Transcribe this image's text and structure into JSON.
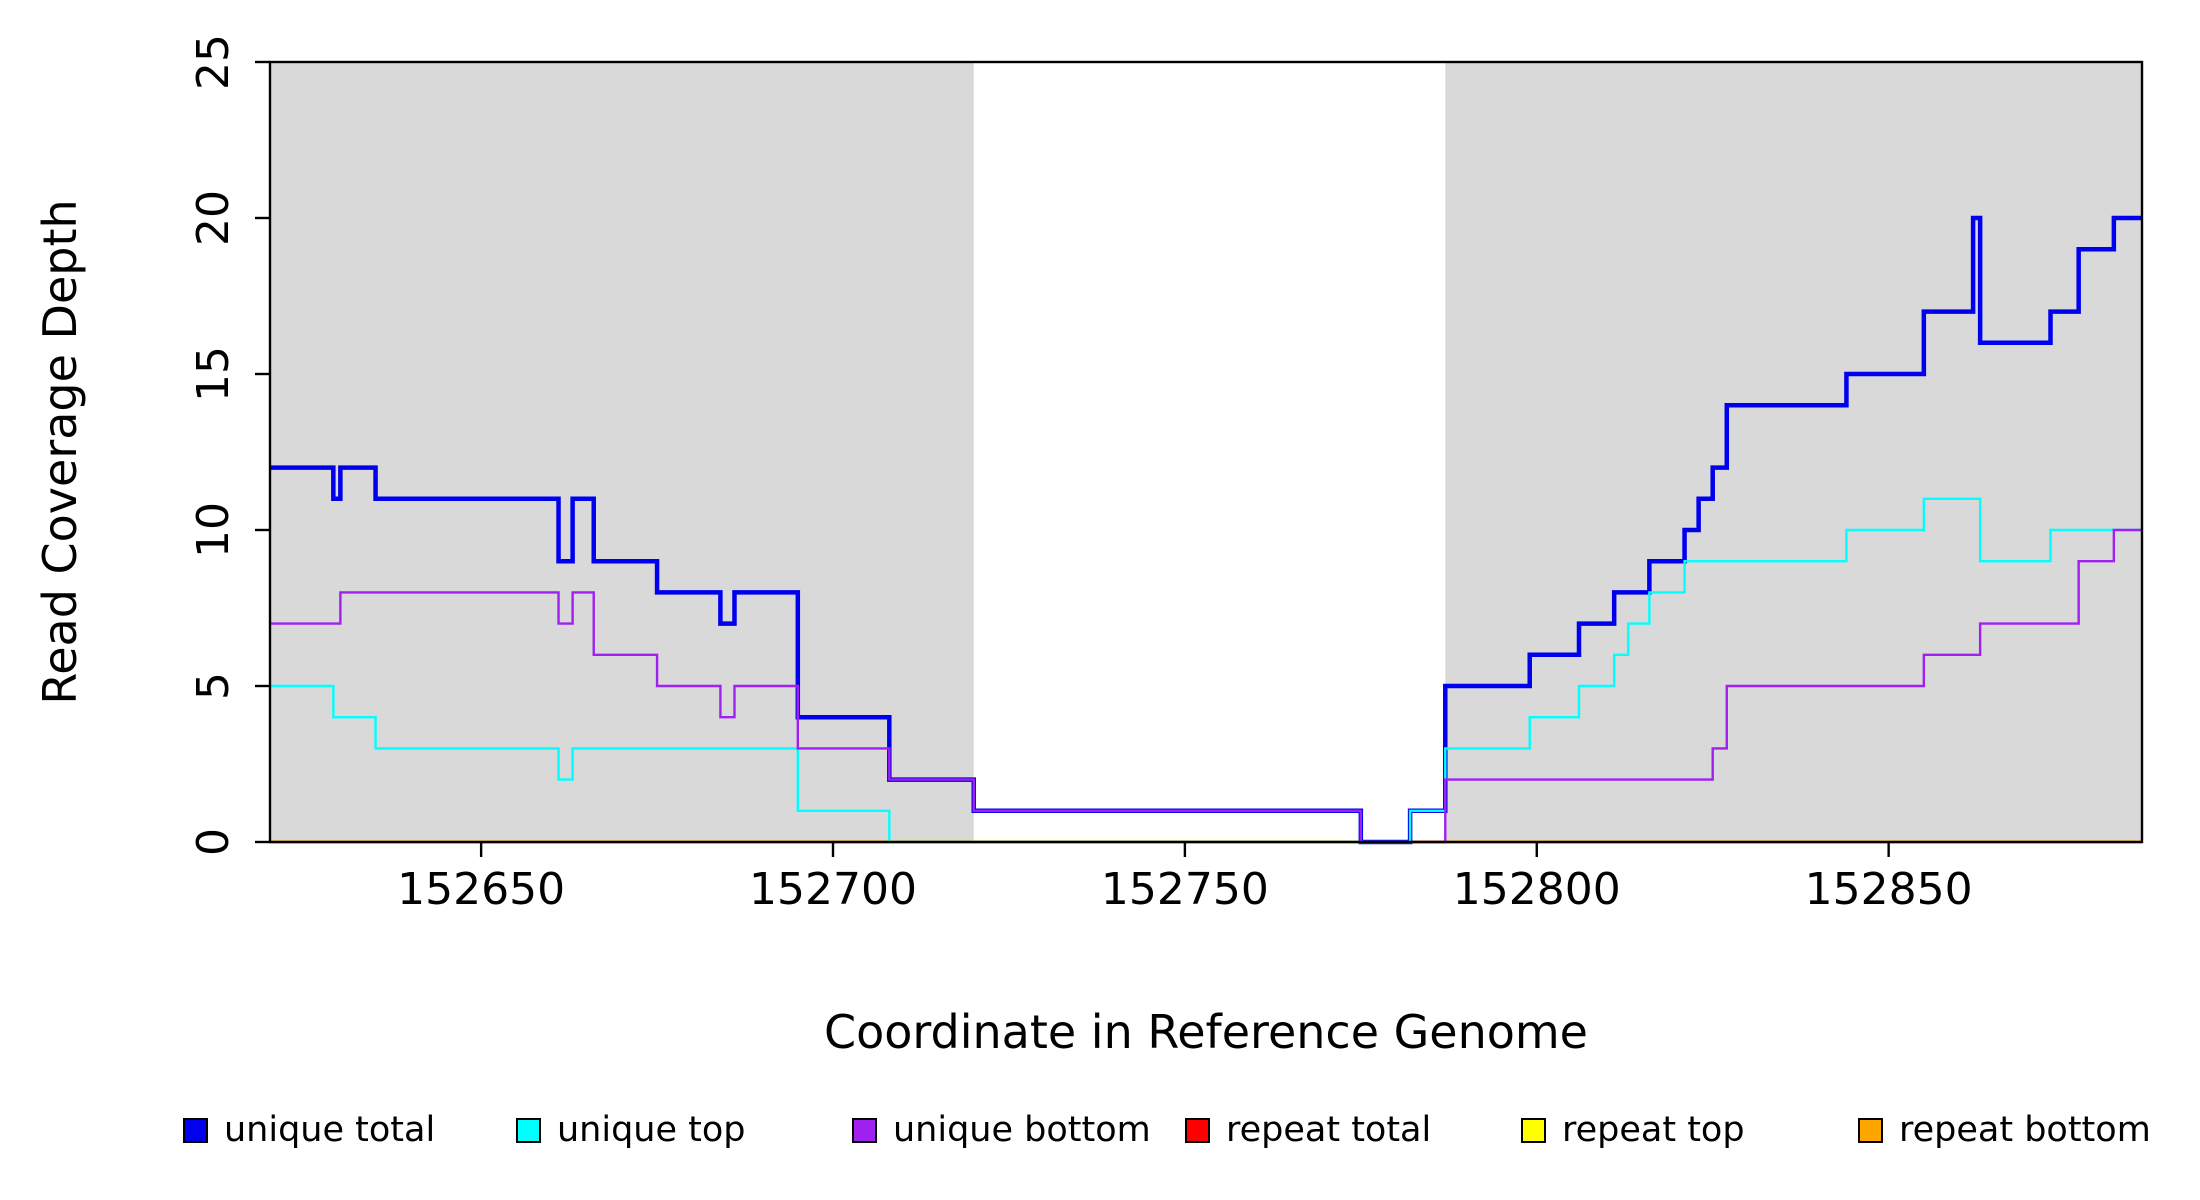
{
  "chart_data": {
    "type": "line",
    "subtype": "step-coverage",
    "title": "",
    "xlabel": "Coordinate in Reference Genome",
    "ylabel": "Read Coverage Depth",
    "xlim": [
      152620,
      152886
    ],
    "ylim": [
      0,
      25
    ],
    "x_ticks": [
      152650,
      152700,
      152750,
      152800,
      152850
    ],
    "y_ticks": [
      0,
      5,
      10,
      15,
      20,
      25
    ],
    "grid": false,
    "background_color": "#ffffff",
    "shade_color": "#D9D9D9",
    "shaded_regions": [
      [
        152620,
        152720
      ],
      [
        152787,
        152886
      ]
    ],
    "series": [
      {
        "name": "repeat total",
        "color": "#FF0000",
        "lwd": 3,
        "steps": [
          [
            152620,
            0
          ]
        ]
      },
      {
        "name": "repeat top",
        "color": "#FFFF00",
        "lwd": 3,
        "steps": [
          [
            152620,
            0
          ]
        ]
      },
      {
        "name": "repeat bottom",
        "color": "#FFA500",
        "lwd": 3.2,
        "steps": [
          [
            152620,
            0
          ]
        ]
      },
      {
        "name": "unique total",
        "color": "#0000EE",
        "lwd": 4.5,
        "steps": [
          [
            152620,
            12
          ],
          [
            152629,
            11
          ],
          [
            152630,
            12
          ],
          [
            152635,
            11
          ],
          [
            152661,
            9
          ],
          [
            152663,
            11
          ],
          [
            152666,
            9
          ],
          [
            152675,
            8
          ],
          [
            152684,
            7
          ],
          [
            152686,
            8
          ],
          [
            152695,
            4
          ],
          [
            152708,
            2
          ],
          [
            152720,
            1
          ],
          [
            152775,
            0
          ],
          [
            152782,
            1
          ],
          [
            152787,
            5
          ],
          [
            152799,
            6
          ],
          [
            152806,
            7
          ],
          [
            152811,
            8
          ],
          [
            152816,
            9
          ],
          [
            152821,
            10
          ],
          [
            152823,
            11
          ],
          [
            152825,
            12
          ],
          [
            152827,
            14
          ],
          [
            152844,
            15
          ],
          [
            152855,
            17
          ],
          [
            152862,
            20
          ],
          [
            152863,
            16
          ],
          [
            152873,
            17
          ],
          [
            152877,
            19
          ],
          [
            152882,
            20
          ]
        ]
      },
      {
        "name": "unique top",
        "color": "#00FFFF",
        "lwd": 2.4,
        "steps": [
          [
            152620,
            5
          ],
          [
            152629,
            4
          ],
          [
            152635,
            3
          ],
          [
            152661,
            2
          ],
          [
            152663,
            3
          ],
          [
            152695,
            1
          ],
          [
            152708,
            0
          ],
          [
            152782,
            1
          ],
          [
            152787,
            3
          ],
          [
            152799,
            4
          ],
          [
            152806,
            5
          ],
          [
            152811,
            6
          ],
          [
            152813,
            7
          ],
          [
            152816,
            8
          ],
          [
            152821,
            9
          ],
          [
            152844,
            10
          ],
          [
            152855,
            11
          ],
          [
            152863,
            9
          ],
          [
            152873,
            10
          ]
        ]
      },
      {
        "name": "unique bottom",
        "color": "#A020F0",
        "lwd": 2.4,
        "steps": [
          [
            152620,
            7
          ],
          [
            152630,
            8
          ],
          [
            152661,
            7
          ],
          [
            152663,
            8
          ],
          [
            152666,
            6
          ],
          [
            152675,
            5
          ],
          [
            152684,
            4
          ],
          [
            152686,
            5
          ],
          [
            152695,
            3
          ],
          [
            152708,
            2
          ],
          [
            152720,
            1
          ],
          [
            152775,
            0
          ],
          [
            152787,
            2
          ],
          [
            152825,
            3
          ],
          [
            152827,
            5
          ],
          [
            152855,
            6
          ],
          [
            152863,
            7
          ],
          [
            152877,
            9
          ],
          [
            152882,
            10
          ]
        ]
      }
    ],
    "legend": [
      {
        "label": "unique total",
        "color": "#0000EE"
      },
      {
        "label": "unique top",
        "color": "#00FFFF"
      },
      {
        "label": "unique bottom",
        "color": "#A020F0"
      },
      {
        "label": "repeat total",
        "color": "#FF0000"
      },
      {
        "label": "repeat top",
        "color": "#FFFF00"
      },
      {
        "label": "repeat bottom",
        "color": "#FFA500"
      }
    ],
    "legend_position": "bottom"
  }
}
